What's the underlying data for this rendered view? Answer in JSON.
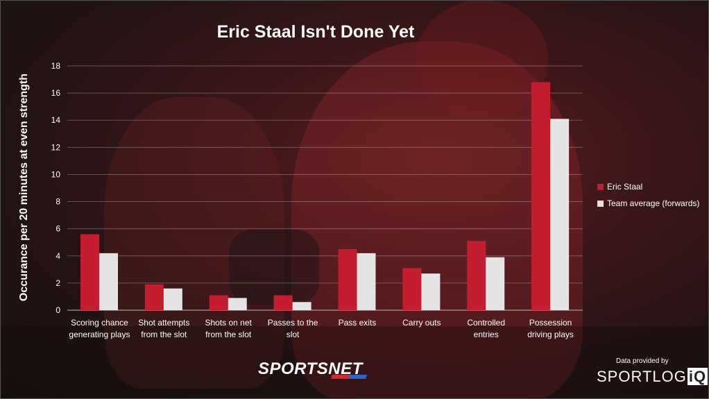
{
  "title": "Eric Staal Isn't Done Yet",
  "chart_data": {
    "type": "bar",
    "title": "Eric Staal Isn't Done Yet",
    "ylabel": "Occurance per 20 minutes at even strength",
    "xlabel": "",
    "ylim": [
      0,
      18
    ],
    "yticks": [
      "0",
      "2",
      "4",
      "6",
      "8",
      "10",
      "12",
      "14",
      "16",
      "18"
    ],
    "grid": true,
    "legend_position": "right",
    "categories": [
      [
        "Scoring chance",
        "generating plays"
      ],
      [
        "Shot attempts",
        "from the slot"
      ],
      [
        "Shots on net",
        "from the slot"
      ],
      [
        "Passes to the",
        "slot"
      ],
      [
        "Pass exits"
      ],
      [
        "Carry outs"
      ],
      [
        "Controlled",
        "entries"
      ],
      [
        "Possession",
        "driving plays"
      ]
    ],
    "series": [
      {
        "name": "Eric Staal",
        "color": "#c41e2e",
        "values": [
          5.6,
          1.9,
          1.1,
          1.1,
          4.5,
          3.1,
          5.1,
          16.8
        ]
      },
      {
        "name": "Team average (forwards)",
        "color": "#e4e4e4",
        "values": [
          4.2,
          1.6,
          0.9,
          0.6,
          4.2,
          2.7,
          3.9,
          14.1
        ]
      }
    ]
  },
  "branding": {
    "logo": "SPORTSNET",
    "credit": "Data provided by",
    "credit_logo_main": "SPORTLOG",
    "credit_logo_iq": "iQ"
  }
}
